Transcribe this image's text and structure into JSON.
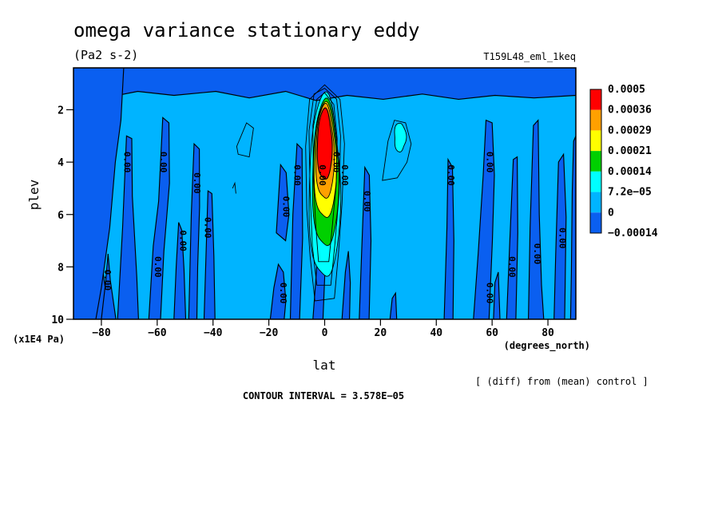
{
  "chart_data": {
    "type": "heatmap",
    "title": "omega variance stationary eddy",
    "units": "(Pa2 s-2)",
    "run_label": "T159L48_eml_1keq",
    "xlabel": "lat",
    "xunits": "(degrees_north)",
    "ylabel": "plev",
    "yunits": "(x1E4 Pa)",
    "xlim": [
      -90,
      90
    ],
    "ylim": [
      10,
      0.4
    ],
    "x_ticks": [
      -80,
      -60,
      -40,
      -20,
      0,
      20,
      40,
      60,
      80
    ],
    "x_tick_labels": [
      "−80",
      "−60",
      "−40",
      "−20",
      "0",
      "20",
      "40",
      "60",
      "80"
    ],
    "y_ticks": [
      2,
      4,
      6,
      8,
      10
    ],
    "y_tick_labels": [
      "2",
      "4",
      "6",
      "8",
      "10"
    ],
    "legend": {
      "placement": "right",
      "colors": [
        "#0a5ff0",
        "#00b4ff",
        "#00ffff",
        "#00d000",
        "#ffff00",
        "#ffa000",
        "#ff0000"
      ],
      "labels": [
        "−0.00014",
        "0",
        "7.2e−05",
        "0.00014",
        "0.00021",
        "0.00029",
        "0.00036",
        "0.0005"
      ]
    },
    "contour_interval_text": "CONTOUR INTERVAL = 3.578E−05",
    "difference_note": "[ (diff) from (mean) control ]",
    "contour_line_label": "0.00",
    "contour_label_positions": [
      [
        -78,
        8.5
      ],
      [
        -71,
        4.0
      ],
      [
        -60,
        8.0
      ],
      [
        -58,
        4.0
      ],
      [
        -51,
        7.0
      ],
      [
        -46,
        4.8
      ],
      [
        -42,
        6.5
      ],
      [
        -15,
        9.0
      ],
      [
        -14,
        5.7
      ],
      [
        -10,
        4.5
      ],
      [
        -1,
        4.5
      ],
      [
        4,
        4.0
      ],
      [
        7,
        4.5
      ],
      [
        15,
        5.5
      ],
      [
        45,
        4.5
      ],
      [
        59,
        4.0
      ],
      [
        59,
        9.0
      ],
      [
        67,
        8.0
      ],
      [
        76,
        7.5
      ],
      [
        85,
        6.9
      ]
    ],
    "features": [
      {
        "name": "equatorial-maximum",
        "center_lat": 0,
        "center_plev": 3.5,
        "max": 0.0005
      },
      {
        "name": "subtropical-weak-positive",
        "center_lat": 27,
        "center_plev": 3.0,
        "value": 7.2e-05
      }
    ]
  }
}
